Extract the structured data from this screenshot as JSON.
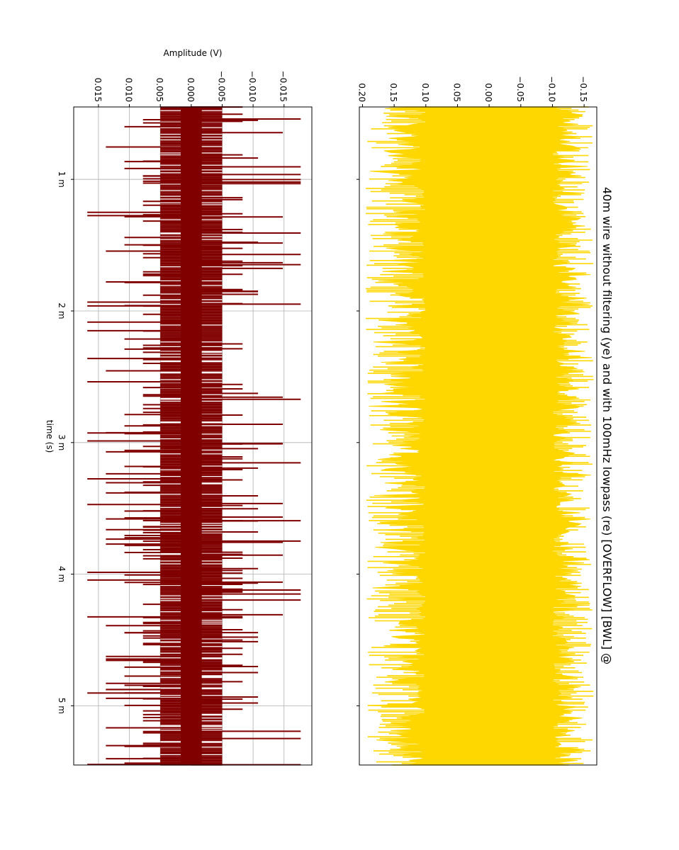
{
  "chart_data": {
    "type": "line",
    "title": "40m wire without filtering (ye) and with 100mHz lowpass (re)  [OVERFLOW] [BWL] @",
    "xlabel": "time (s)",
    "ylabel": "Amplitude (V)",
    "xlim": [
      0.45,
      5.45
    ],
    "x_ticks": [
      {
        "value": 1,
        "label": "1 m"
      },
      {
        "value": 2,
        "label": "2 m"
      },
      {
        "value": 3,
        "label": "3 m"
      },
      {
        "value": 4,
        "label": "4 m"
      },
      {
        "value": 5,
        "label": "5 m"
      }
    ],
    "orientation": "rotated 90° clockwise (time runs top to bottom, amplitude runs right to left)",
    "panels": [
      {
        "name": "unfiltered",
        "ylim": [
          -0.17,
          0.205
        ],
        "y_ticks": [
          -0.15,
          -0.1,
          -0.05,
          0.0,
          0.05,
          0.1,
          0.15,
          0.2
        ],
        "y_tick_labels": [
          "−0.15",
          "−0.10",
          "−0.05",
          "0.00",
          "0.05",
          "0.10",
          "0.15",
          "0.20"
        ],
        "grid": false,
        "series": [
          {
            "color": "#ffd700",
            "core_band": [
              -0.1,
              0.1
            ],
            "peak_max": 0.195,
            "peak_min": -0.165
          }
        ]
      },
      {
        "name": "lowpass",
        "ylim": [
          -0.0195,
          0.019
        ],
        "y_ticks": [
          -0.015,
          -0.01,
          -0.005,
          0.0,
          0.005,
          0.01,
          0.015
        ],
        "y_tick_labels": [
          "−0.015",
          "−0.010",
          "−0.005",
          "0.000",
          "0.005",
          "0.010",
          "0.015"
        ],
        "grid": true,
        "series": [
          {
            "color": "#800000",
            "core_band": [
              -0.0017,
              0.0017
            ],
            "levels": [
              -0.0177,
              -0.0148,
              -0.0108,
              -0.0083,
              -0.005,
              0.005,
              0.0078,
              0.0108,
              0.0138,
              0.0168
            ],
            "peak_max": 0.0168,
            "peak_min": -0.0177
          }
        ]
      }
    ]
  }
}
